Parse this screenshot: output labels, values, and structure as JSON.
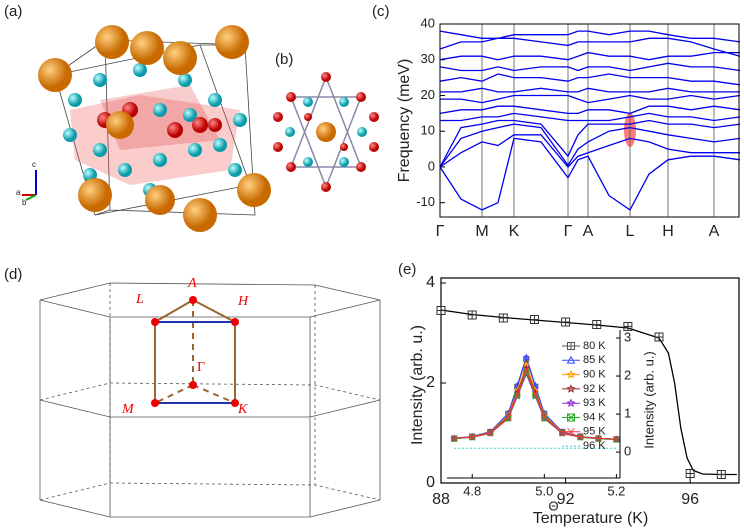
{
  "panel_labels": [
    "(a)",
    "(b)",
    "(c)",
    "(d)",
    "(e)"
  ],
  "structure_axes": [
    "c",
    "a",
    "b"
  ],
  "bz_points": [
    "A",
    "L",
    "H",
    "Γ",
    "M",
    "K"
  ],
  "chart_data": [
    {
      "type": "line",
      "ylabel": "Frequency (meV)",
      "ylim": [
        -14,
        40
      ],
      "yticks": [
        -10,
        0,
        10,
        20,
        30,
        40
      ],
      "xlim": [
        0,
        300
      ],
      "kpoints": {
        "labels": [
          "Γ",
          "M",
          "K",
          "Γ",
          "A",
          "L",
          "H",
          "A"
        ],
        "positions": [
          0,
          42,
          74,
          128,
          148,
          190,
          228,
          274
        ]
      },
      "x": [
        0,
        21,
        42,
        58,
        74,
        101,
        128,
        138,
        148,
        169,
        190,
        209,
        228,
        251,
        274,
        300
      ],
      "color": "#0000ee",
      "bands": [
        [
          0,
          -9,
          -12,
          -10,
          8,
          7,
          -3,
          2,
          3,
          -8,
          -12,
          -2,
          2,
          3,
          3,
          2
        ],
        [
          0,
          4,
          7,
          6,
          9,
          9,
          0,
          3,
          4,
          6,
          8,
          7,
          5,
          4,
          4,
          4
        ],
        [
          0,
          8,
          10,
          11,
          12,
          11,
          0.5,
          5,
          7,
          10,
          11,
          10,
          9,
          8,
          7,
          8
        ],
        [
          0,
          11,
          12,
          13,
          13,
          12,
          3,
          9,
          12,
          12,
          12,
          13,
          12,
          12,
          11,
          12
        ],
        [
          13,
          13,
          14,
          14,
          15,
          14,
          13,
          13,
          13,
          13,
          14,
          15,
          14,
          14,
          13,
          14
        ],
        [
          15,
          16,
          16,
          17,
          17,
          16,
          15,
          15,
          16,
          16,
          15,
          17,
          17,
          16,
          17,
          16
        ],
        [
          19,
          19,
          18,
          19,
          20,
          20,
          20,
          19,
          18,
          19,
          20,
          19,
          19,
          20,
          19,
          20
        ],
        [
          21,
          21,
          22,
          21,
          21,
          22,
          21,
          21,
          22,
          21,
          21,
          21,
          22,
          21,
          21,
          21
        ],
        [
          24,
          25,
          24,
          26,
          25,
          25,
          24,
          25,
          25,
          26,
          25,
          25,
          25,
          24,
          24,
          23
        ],
        [
          28,
          27,
          27,
          28,
          27,
          28,
          28,
          27,
          28,
          28,
          27,
          28,
          29,
          28,
          28,
          27
        ],
        [
          30,
          31,
          31,
          30,
          31,
          31,
          30,
          31,
          32,
          31,
          31,
          30,
          31,
          31,
          32,
          32
        ],
        [
          33,
          35,
          35,
          36,
          36,
          35,
          34,
          35,
          35,
          35,
          35,
          36,
          36,
          35,
          33,
          31
        ],
        [
          38,
          37,
          36,
          36,
          37,
          37,
          37,
          38,
          38,
          37,
          38,
          38,
          37,
          36,
          36,
          35
        ]
      ]
    },
    {
      "type": "scatter",
      "xlabel": "Temperature (K)",
      "ylabel": "Intensity (arb. u.)",
      "xlim": [
        88,
        97.6
      ],
      "xticks": [
        88,
        92,
        96
      ],
      "ylim": [
        0,
        4.1
      ],
      "yticks": [
        0,
        2,
        4
      ],
      "color": "#333333",
      "x": [
        88,
        89,
        90,
        91,
        92,
        93,
        94,
        95,
        96,
        97
      ],
      "values": [
        3.45,
        3.36,
        3.3,
        3.27,
        3.22,
        3.17,
        3.13,
        2.92,
        0.19,
        0.17
      ],
      "fit": {
        "x": [
          88,
          89,
          90,
          91,
          92,
          93,
          94,
          95,
          95.3,
          95.5,
          95.7,
          95.9,
          96.1,
          96.4,
          97,
          97.5
        ],
        "values": [
          3.46,
          3.37,
          3.31,
          3.26,
          3.21,
          3.16,
          3.1,
          2.9,
          2.6,
          2.0,
          1.1,
          0.5,
          0.25,
          0.18,
          0.17,
          0.17
        ]
      },
      "inset": {
        "type": "line",
        "xlabel": "Θ",
        "y2label": "Intensity (arb. u.)",
        "xlim": [
          4.73,
          5.21
        ],
        "xticks": [
          4.8,
          {
            "value": 5,
            "label": "5.0"
          },
          5.2
        ],
        "y2lim": [
          -0.68,
          3.21
        ],
        "y2ticks": [
          0,
          1,
          2,
          3
        ],
        "x": [
          4.75,
          4.8,
          4.85,
          4.9,
          4.925,
          4.95,
          4.975,
          5.0,
          5.05,
          5.1,
          5.15,
          5.2
        ],
        "series": [
          {
            "name": "80 K",
            "color": "#555555",
            "marker": "square",
            "values": [
              0.36,
              0.41,
              0.53,
              1.01,
              1.72,
              2.45,
              1.72,
              1.01,
              0.53,
              0.41,
              0.36,
              0.34
            ]
          },
          {
            "name": "85 K",
            "color": "#3344ff",
            "marker": "triangle",
            "values": [
              0.37,
              0.41,
              0.54,
              1.02,
              1.76,
              2.5,
              1.76,
              1.02,
              0.54,
              0.41,
              0.37,
              0.34
            ]
          },
          {
            "name": "90 K",
            "color": "#ff9900",
            "marker": "star",
            "values": [
              0.36,
              0.4,
              0.52,
              0.96,
              1.62,
              2.3,
              1.62,
              0.96,
              0.52,
              0.4,
              0.36,
              0.34
            ]
          },
          {
            "name": "92 K",
            "color": "#992222",
            "marker": "star",
            "values": [
              0.36,
              0.4,
              0.51,
              0.93,
              1.56,
              2.2,
              1.56,
              0.93,
              0.51,
              0.4,
              0.36,
              0.34
            ]
          },
          {
            "name": "93 K",
            "color": "#8822cc",
            "marker": "star",
            "values": [
              0.35,
              0.39,
              0.49,
              0.88,
              1.46,
              2.05,
              1.46,
              0.88,
              0.49,
              0.39,
              0.35,
              0.33
            ]
          },
          {
            "name": "94 K",
            "color": "#22aa22",
            "marker": "xbox",
            "values": [
              0.35,
              0.39,
              0.5,
              0.89,
              1.49,
              2.1,
              1.49,
              0.89,
              0.5,
              0.39,
              0.35,
              0.33
            ]
          },
          {
            "name": "95 K",
            "color": "#ff3333",
            "marker": "x",
            "values": [
              0.36,
              0.4,
              0.5,
              0.91,
              1.52,
              2.15,
              1.52,
              0.91,
              0.5,
              0.4,
              0.36,
              0.34
            ]
          },
          {
            "name": "96 K",
            "color": "#33cccc",
            "marker": "dot",
            "values": [
              0.1,
              0.1,
              0.1,
              0.1,
              0.1,
              0.1,
              0.1,
              0.1,
              0.1,
              0.1,
              0.1,
              0.1
            ]
          }
        ]
      }
    }
  ]
}
